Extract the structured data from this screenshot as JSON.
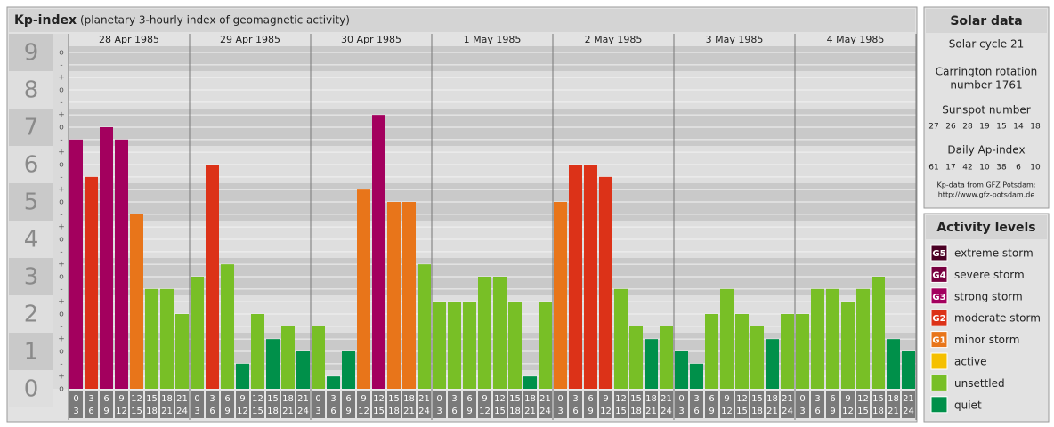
{
  "chart_data": {
    "type": "bar",
    "title": "Kp-index",
    "subtitle": "(planetary 3-hourly index of geomagnetic activity)",
    "ylim": [
      0,
      9
    ],
    "yticks": [
      0,
      1,
      2,
      3,
      4,
      5,
      6,
      7,
      8,
      9
    ],
    "minor_ticks": [
      {
        "value": 0,
        "label": "o"
      },
      {
        "value": 0.33,
        "label": "+"
      },
      {
        "value": 0.67,
        "label": "-"
      },
      {
        "value": 1,
        "label": "o"
      },
      {
        "value": 1.33,
        "label": "+"
      },
      {
        "value": 1.67,
        "label": "-"
      },
      {
        "value": 2,
        "label": "o"
      },
      {
        "value": 2.33,
        "label": "+"
      },
      {
        "value": 2.67,
        "label": "-"
      },
      {
        "value": 3,
        "label": "o"
      },
      {
        "value": 3.33,
        "label": "+"
      },
      {
        "value": 3.67,
        "label": "-"
      },
      {
        "value": 4,
        "label": "o"
      },
      {
        "value": 4.33,
        "label": "+"
      },
      {
        "value": 4.67,
        "label": "-"
      },
      {
        "value": 5,
        "label": "o"
      },
      {
        "value": 5.33,
        "label": "+"
      },
      {
        "value": 5.67,
        "label": "-"
      },
      {
        "value": 6,
        "label": "o"
      },
      {
        "value": 6.33,
        "label": "+"
      },
      {
        "value": 6.67,
        "label": "-"
      },
      {
        "value": 7,
        "label": "o"
      },
      {
        "value": 7.33,
        "label": "+"
      },
      {
        "value": 7.67,
        "label": "-"
      },
      {
        "value": 8,
        "label": "o"
      },
      {
        "value": 8.33,
        "label": "+"
      },
      {
        "value": 8.67,
        "label": "-"
      },
      {
        "value": 9,
        "label": "o"
      }
    ],
    "grid": true,
    "hour_labels": [
      [
        "0",
        "3"
      ],
      [
        "3",
        "6"
      ],
      [
        "6",
        "9"
      ],
      [
        "9",
        "12"
      ],
      [
        "12",
        "15"
      ],
      [
        "15",
        "18"
      ],
      [
        "18",
        "21"
      ],
      [
        "21",
        "24"
      ]
    ],
    "days": [
      {
        "date": "28 Apr 1985",
        "values": [
          6.67,
          5.67,
          7,
          6.67,
          4.67,
          2.67,
          2.67,
          2
        ],
        "colors": [
          "#a3005e",
          "#dc3218",
          "#a3005e",
          "#a3005e",
          "#e8751a",
          "#78bf26",
          "#78bf26",
          "#78bf26"
        ]
      },
      {
        "date": "29 Apr 1985",
        "values": [
          3,
          6,
          3.33,
          0.67,
          2,
          1.33,
          1.67,
          1
        ],
        "colors": [
          "#78bf26",
          "#dc3218",
          "#78bf26",
          "#00904a",
          "#78bf26",
          "#00904a",
          "#78bf26",
          "#00904a"
        ]
      },
      {
        "date": "30 Apr 1985",
        "values": [
          1.67,
          0.33,
          1,
          5.33,
          7.33,
          5,
          5,
          3.33
        ],
        "colors": [
          "#78bf26",
          "#00904a",
          "#00904a",
          "#e8751a",
          "#a3005e",
          "#e8751a",
          "#e8751a",
          "#78bf26"
        ]
      },
      {
        "date": "1 May 1985",
        "values": [
          2.33,
          2.33,
          2.33,
          3,
          3,
          2.33,
          0.33,
          2.33
        ],
        "colors": [
          "#78bf26",
          "#78bf26",
          "#78bf26",
          "#78bf26",
          "#78bf26",
          "#78bf26",
          "#00904a",
          "#78bf26"
        ]
      },
      {
        "date": "2 May 1985",
        "values": [
          5,
          6,
          6,
          5.67,
          2.67,
          1.67,
          1.33,
          1.67
        ],
        "colors": [
          "#e8751a",
          "#dc3218",
          "#dc3218",
          "#dc3218",
          "#78bf26",
          "#78bf26",
          "#00904a",
          "#78bf26"
        ]
      },
      {
        "date": "3 May 1985",
        "values": [
          1,
          0.67,
          2,
          2.67,
          2,
          1.67,
          1.33,
          2
        ],
        "colors": [
          "#00904a",
          "#00904a",
          "#78bf26",
          "#78bf26",
          "#78bf26",
          "#78bf26",
          "#00904a",
          "#78bf26"
        ]
      },
      {
        "date": "4 May 1985",
        "values": [
          2,
          2.67,
          2.67,
          2.33,
          2.67,
          3,
          1.33,
          1
        ],
        "colors": [
          "#78bf26",
          "#78bf26",
          "#78bf26",
          "#78bf26",
          "#78bf26",
          "#78bf26",
          "#00904a",
          "#00904a"
        ]
      }
    ]
  },
  "solar_data": {
    "title": "Solar data",
    "cycle": "Solar cycle 21",
    "carrington": [
      "Carrington rotation",
      "number 1761"
    ],
    "sunspot_label": "Sunspot number",
    "sunspot": [
      27,
      26,
      28,
      19,
      15,
      14,
      18
    ],
    "ap_label": "Daily Ap-index",
    "ap": [
      61,
      17,
      42,
      10,
      38,
      6,
      10
    ],
    "credit": "Kp-data from GFZ Potsdam:",
    "url": "http://www.gfz-potsdam.de"
  },
  "activity": {
    "title": "Activity levels",
    "levels": [
      {
        "code": "G5",
        "label": "extreme storm",
        "color": "#4a0024"
      },
      {
        "code": "G4",
        "label": "severe storm",
        "color": "#780040"
      },
      {
        "code": "G3",
        "label": "strong storm",
        "color": "#a3005e"
      },
      {
        "code": "G2",
        "label": "moderate storm",
        "color": "#dc3218"
      },
      {
        "code": "G1",
        "label": "minor storm",
        "color": "#e8751a"
      },
      {
        "label": "active",
        "color": "#f5c000"
      },
      {
        "label": "unsettled",
        "color": "#78bf26"
      },
      {
        "label": "quiet",
        "color": "#00904a"
      }
    ]
  }
}
